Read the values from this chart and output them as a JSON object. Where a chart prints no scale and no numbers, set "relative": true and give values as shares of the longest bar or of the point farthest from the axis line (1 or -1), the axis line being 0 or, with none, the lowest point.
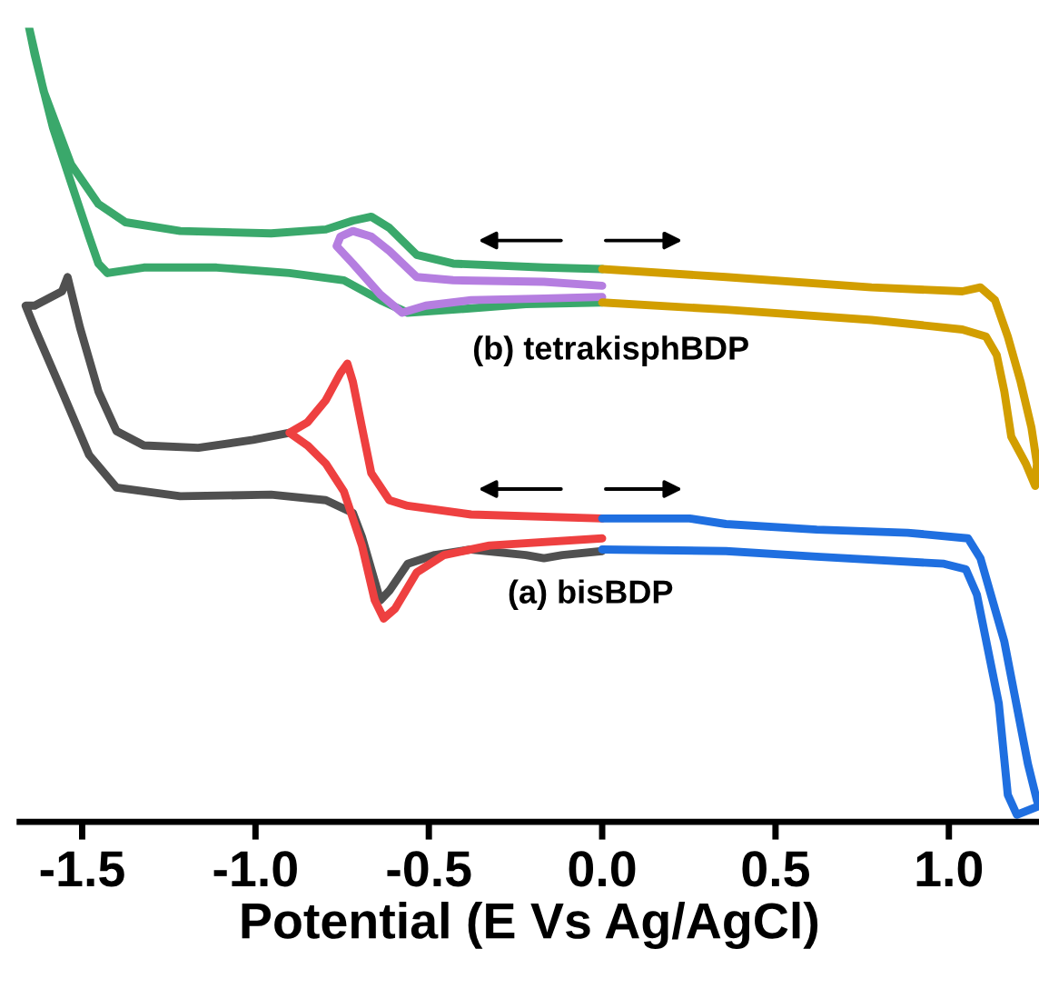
{
  "chart_data": {
    "type": "line",
    "xlabel": "Potential (E Vs Ag/AgCl)",
    "relative": true,
    "tick_labels": "x",
    "grid": false,
    "legend": false,
    "marker": "none",
    "line_style": "solid",
    "xlim": [
      -1.68,
      1.26
    ],
    "xticks": [
      {
        "value": -1.5,
        "label": "-1.5"
      },
      {
        "value": -1.0,
        "label": "-1.0"
      },
      {
        "value": -0.5,
        "label": "-0.5"
      },
      {
        "value": 0.0,
        "label": "0.0"
      },
      {
        "value": 0.5,
        "label": "0.5"
      },
      {
        "value": 1.0,
        "label": "1.0"
      }
    ],
    "annotations": [
      "(b) tetrakisphBDP",
      "(a) bisBDP"
    ],
    "series": [
      {
        "color": "#3aa86b",
        "x": [
          0.0,
          -0.168,
          -0.43,
          -0.535,
          -0.614,
          -0.666,
          -0.719,
          -0.797,
          -0.955,
          -1.217,
          -1.375,
          -1.453,
          -1.532,
          -1.611,
          -1.653,
          -1.637,
          -1.584,
          -1.532,
          -1.48,
          -1.453,
          -1.427,
          -1.322,
          -1.112,
          -0.902,
          -0.745,
          -0.64,
          -0.561,
          -0.43,
          -0.22,
          0.0
        ],
        "values": [
          0.696,
          0.698,
          0.703,
          0.714,
          0.748,
          0.762,
          0.757,
          0.746,
          0.741,
          0.744,
          0.755,
          0.778,
          0.828,
          0.92,
          1.0,
          0.966,
          0.874,
          0.805,
          0.737,
          0.703,
          0.691,
          0.698,
          0.698,
          0.691,
          0.682,
          0.657,
          0.641,
          0.645,
          0.652,
          0.654
        ]
      },
      {
        "color": "#b57ee0",
        "x": [
          0.0,
          -0.168,
          -0.43,
          -0.535,
          -0.614,
          -0.666,
          -0.719,
          -0.755,
          -0.766,
          -0.719,
          -0.64,
          -0.577,
          -0.509,
          -0.378,
          -0.168,
          0.0
        ],
        "values": [
          0.675,
          0.68,
          0.682,
          0.686,
          0.719,
          0.737,
          0.744,
          0.737,
          0.725,
          0.703,
          0.664,
          0.641,
          0.65,
          0.657,
          0.659,
          0.661
        ]
      },
      {
        "color": "#d29e00",
        "x": [
          0.0,
          0.357,
          0.777,
          1.039,
          1.091,
          1.133,
          1.17,
          1.207,
          1.238,
          1.254,
          1.249,
          1.222,
          1.18,
          1.16,
          1.138,
          1.107,
          1.039,
          0.777,
          0.357,
          0.0
        ],
        "values": [
          0.696,
          0.686,
          0.673,
          0.668,
          0.673,
          0.657,
          0.611,
          0.554,
          0.497,
          0.451,
          0.423,
          0.451,
          0.485,
          0.542,
          0.588,
          0.611,
          0.62,
          0.632,
          0.645,
          0.654
        ]
      },
      {
        "color": "#505050",
        "x": [
          0.0,
          -0.115,
          -0.168,
          -0.22,
          -0.378,
          -0.483,
          -0.561,
          -0.614,
          -0.64,
          -0.693,
          -0.719,
          -0.797,
          -0.955,
          -1.217,
          -1.401,
          -1.48,
          -1.558,
          -1.637,
          -1.663,
          -1.637,
          -1.558,
          -1.542,
          -1.506,
          -1.453,
          -1.401,
          -1.322,
          -1.165,
          -1.007,
          -0.902
        ],
        "values": [
          0.341,
          0.336,
          0.332,
          0.336,
          0.343,
          0.336,
          0.325,
          0.291,
          0.279,
          0.359,
          0.389,
          0.405,
          0.412,
          0.41,
          0.421,
          0.462,
          0.542,
          0.622,
          0.65,
          0.65,
          0.668,
          0.686,
          0.622,
          0.542,
          0.492,
          0.474,
          0.471,
          0.481,
          0.49
        ]
      },
      {
        "color": "#ee4040",
        "x": [
          0.0,
          -0.378,
          -0.561,
          -0.614,
          -0.666,
          -0.693,
          -0.719,
          -0.735,
          -0.755,
          -0.797,
          -0.85,
          -0.902,
          -0.85,
          -0.797,
          -0.745,
          -0.693,
          -0.656,
          -0.63,
          -0.598,
          -0.535,
          -0.456,
          -0.325,
          0.0
        ],
        "values": [
          0.382,
          0.387,
          0.398,
          0.405,
          0.439,
          0.497,
          0.554,
          0.577,
          0.565,
          0.531,
          0.503,
          0.49,
          0.474,
          0.451,
          0.416,
          0.348,
          0.279,
          0.256,
          0.268,
          0.314,
          0.336,
          0.348,
          0.357
        ]
      },
      {
        "color": "#1f6fe0",
        "x": [
          0.0,
          0.252,
          0.357,
          0.619,
          0.881,
          1.055,
          1.091,
          1.16,
          1.228,
          1.254,
          1.26,
          1.196,
          1.17,
          1.144,
          1.081,
          1.049,
          0.986,
          0.619,
          0.357,
          0.0
        ],
        "values": [
          0.382,
          0.382,
          0.375,
          0.368,
          0.364,
          0.357,
          0.332,
          0.227,
          0.073,
          0.027,
          0.02,
          0.009,
          0.034,
          0.149,
          0.286,
          0.318,
          0.325,
          0.334,
          0.341,
          0.343
        ]
      }
    ]
  }
}
